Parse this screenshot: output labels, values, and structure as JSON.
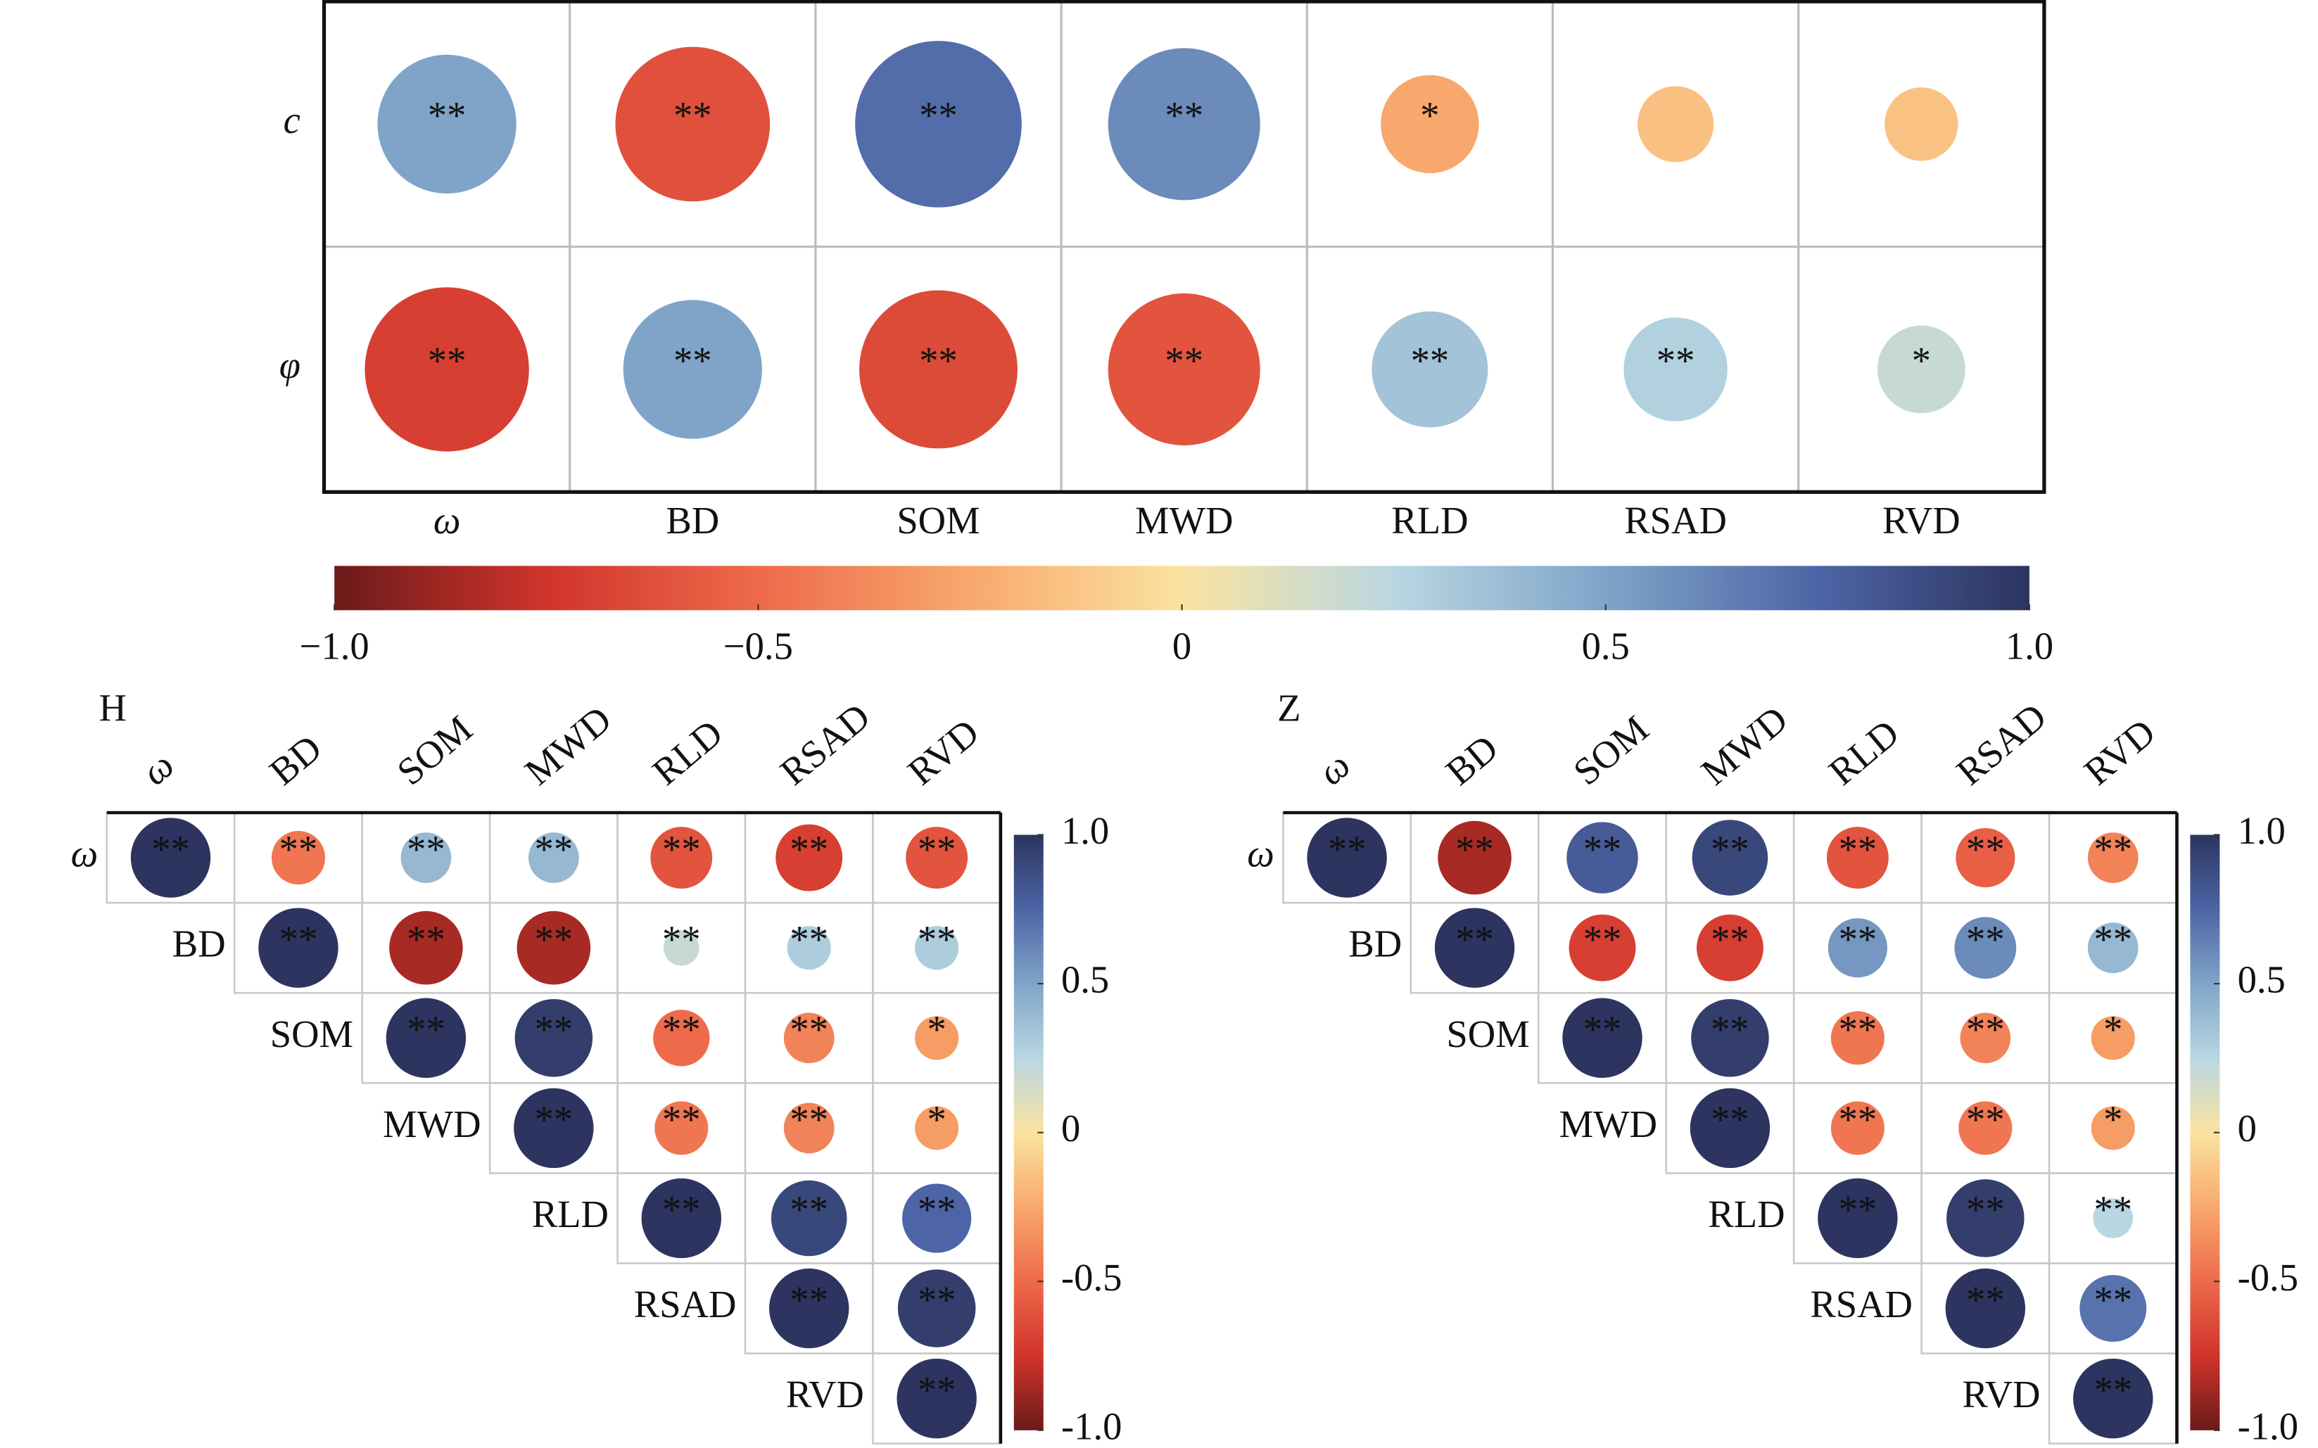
{
  "chart_data": [
    {
      "type": "correlation",
      "rows": [
        "c",
        "φ"
      ],
      "columns": [
        "ω",
        "BD",
        "SOM",
        "MWD",
        "RLD",
        "RSAD",
        "RVD"
      ],
      "values": [
        [
          0.5,
          -0.62,
          0.72,
          0.6,
          -0.25,
          -0.15,
          -0.14
        ],
        [
          -0.7,
          0.5,
          -0.65,
          -0.6,
          0.35,
          0.28,
          0.2
        ]
      ],
      "labels": [
        [
          "**",
          "**",
          "**",
          "**",
          "*",
          null,
          null
        ],
        [
          "**",
          "**",
          "**",
          "**",
          "**",
          "**",
          "*"
        ]
      ],
      "clim": [
        -1,
        1
      ],
      "colormap": [
        "#6b1a1a",
        "#d0342b",
        "#ee6a4b",
        "#f8a86c",
        "#fbe3a0",
        "#b9d7e2",
        "#7fa4c8",
        "#4d65a6",
        "#2c345f"
      ],
      "colorbar": "horizontal",
      "cticks": [
        {
          "value": -1,
          "label": "−1.0"
        },
        {
          "value": -0.5,
          "label": "−0.5"
        },
        0,
        0.5,
        {
          "value": 1,
          "label": "1.0"
        }
      ]
    },
    {
      "type": "correlation",
      "title": "H",
      "rows": [
        "ω",
        "BD",
        "SOM",
        "MWD",
        "RLD",
        "RSAD",
        "RVD"
      ],
      "columns": [
        "ω",
        "BD",
        "SOM",
        "MWD",
        "RLD",
        "RSAD",
        "RVD"
      ],
      "values": [
        [
          1,
          -0.45,
          0.4,
          0.4,
          -0.6,
          -0.7,
          -0.6
        ],
        [
          null,
          1,
          -0.85,
          -0.85,
          0.2,
          0.3,
          0.3
        ],
        [
          null,
          null,
          1,
          0.95,
          -0.5,
          -0.4,
          -0.3
        ],
        [
          null,
          null,
          null,
          1,
          -0.45,
          -0.4,
          -0.3
        ],
        [
          null,
          null,
          null,
          null,
          1,
          0.9,
          0.75
        ],
        [
          null,
          null,
          null,
          null,
          null,
          1,
          0.95
        ],
        [
          null,
          null,
          null,
          null,
          null,
          null,
          1
        ]
      ],
      "labels": [
        [
          "**",
          "**",
          "**",
          "**",
          "**",
          "**",
          "**"
        ],
        [
          null,
          "**",
          "**",
          "**",
          "**",
          "**",
          "**"
        ],
        [
          null,
          null,
          "**",
          "**",
          "**",
          "**",
          "*"
        ],
        [
          null,
          null,
          null,
          "**",
          "**",
          "**",
          "*"
        ],
        [
          null,
          null,
          null,
          null,
          "**",
          "**",
          "**"
        ],
        [
          null,
          null,
          null,
          null,
          null,
          "**",
          "**"
        ],
        [
          null,
          null,
          null,
          null,
          null,
          null,
          "**"
        ]
      ],
      "clim": [
        -1,
        1
      ],
      "colormap": [
        "#6b1a1a",
        "#d0342b",
        "#ee6a4b",
        "#f8a86c",
        "#fbe3a0",
        "#b9d7e2",
        "#7fa4c8",
        "#4d65a6",
        "#2c345f"
      ],
      "colorbar": "vertical",
      "cticks": [
        {
          "value": 1,
          "label": "1.0"
        },
        0.5,
        0,
        -0.5,
        {
          "value": -1,
          "label": "-1.0"
        }
      ]
    },
    {
      "type": "correlation",
      "title": "Z",
      "rows": [
        "ω",
        "BD",
        "SOM",
        "MWD",
        "RLD",
        "RSAD",
        "RVD"
      ],
      "columns": [
        "ω",
        "BD",
        "SOM",
        "MWD",
        "RLD",
        "RSAD",
        "RVD"
      ],
      "values": [
        [
          1,
          -0.85,
          0.8,
          0.9,
          -0.6,
          -0.55,
          -0.4
        ],
        [
          null,
          1,
          -0.7,
          -0.7,
          0.55,
          0.6,
          0.4
        ],
        [
          null,
          null,
          1,
          0.95,
          -0.45,
          -0.4,
          -0.3
        ],
        [
          null,
          null,
          null,
          1,
          -0.45,
          -0.45,
          -0.3
        ],
        [
          null,
          null,
          null,
          null,
          1,
          0.95,
          0.25
        ],
        [
          null,
          null,
          null,
          null,
          null,
          1,
          0.7
        ],
        [
          null,
          null,
          null,
          null,
          null,
          null,
          1
        ]
      ],
      "labels": [
        [
          "**",
          "**",
          "**",
          "**",
          "**",
          "**",
          "**"
        ],
        [
          null,
          "**",
          "**",
          "**",
          "**",
          "**",
          "**"
        ],
        [
          null,
          null,
          "**",
          "**",
          "**",
          "**",
          "*"
        ],
        [
          null,
          null,
          null,
          "**",
          "**",
          "**",
          "*"
        ],
        [
          null,
          null,
          null,
          null,
          "**",
          "**",
          "**"
        ],
        [
          null,
          null,
          null,
          null,
          null,
          "**",
          "**"
        ],
        [
          null,
          null,
          null,
          null,
          null,
          null,
          "**"
        ]
      ],
      "clim": [
        -1,
        1
      ],
      "colormap": [
        "#6b1a1a",
        "#d0342b",
        "#ee6a4b",
        "#f8a86c",
        "#fbe3a0",
        "#b9d7e2",
        "#7fa4c8",
        "#4d65a6",
        "#2c345f"
      ],
      "colorbar": "vertical",
      "cticks": [
        {
          "value": 1,
          "label": "1.0"
        },
        0.5,
        0,
        -0.5,
        {
          "value": -1,
          "label": "-1.0"
        }
      ]
    }
  ]
}
